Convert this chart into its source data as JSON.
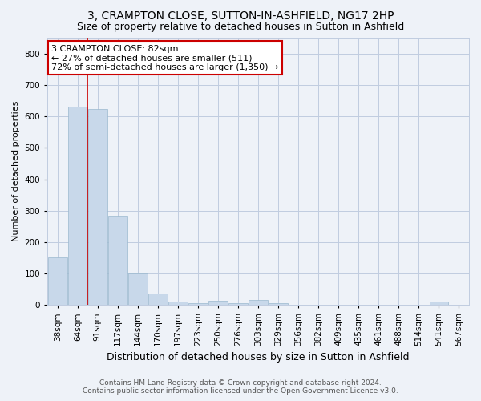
{
  "title": "3, CRAMPTON CLOSE, SUTTON-IN-ASHFIELD, NG17 2HP",
  "subtitle": "Size of property relative to detached houses in Sutton in Ashfield",
  "xlabel": "Distribution of detached houses by size in Sutton in Ashfield",
  "ylabel": "Number of detached properties",
  "footer_line1": "Contains HM Land Registry data © Crown copyright and database right 2024.",
  "footer_line2": "Contains public sector information licensed under the Open Government Licence v3.0.",
  "categories": [
    "38sqm",
    "64sqm",
    "91sqm",
    "117sqm",
    "144sqm",
    "170sqm",
    "197sqm",
    "223sqm",
    "250sqm",
    "276sqm",
    "303sqm",
    "329sqm",
    "356sqm",
    "382sqm",
    "409sqm",
    "435sqm",
    "461sqm",
    "488sqm",
    "514sqm",
    "541sqm",
    "567sqm"
  ],
  "bar_values": [
    150,
    632,
    625,
    285,
    100,
    35,
    10,
    5,
    12,
    5,
    15,
    5,
    0,
    0,
    0,
    0,
    0,
    0,
    0,
    10,
    0
  ],
  "bar_color": "#c8d8ea",
  "bar_edge_color": "#9ab8ce",
  "ylim": [
    0,
    850
  ],
  "yticks": [
    0,
    100,
    200,
    300,
    400,
    500,
    600,
    700,
    800
  ],
  "grid_color": "#c0cce0",
  "bg_color": "#eef2f8",
  "red_line_x": 1.5,
  "annotation_text": "3 CRAMPTON CLOSE: 82sqm\n← 27% of detached houses are smaller (511)\n72% of semi-detached houses are larger (1,350) →",
  "annotation_box_color": "#ffffff",
  "annotation_box_edge": "#cc0000",
  "red_line_color": "#cc0000",
  "title_fontsize": 10,
  "subtitle_fontsize": 9,
  "xlabel_fontsize": 9,
  "ylabel_fontsize": 8,
  "tick_fontsize": 7.5,
  "annotation_fontsize": 8
}
